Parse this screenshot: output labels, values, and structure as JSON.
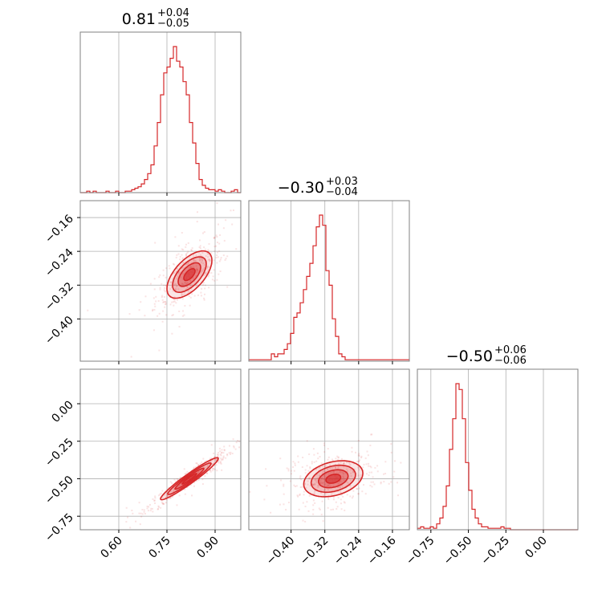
{
  "chart_data": {
    "type": "corner",
    "color": "#d62728",
    "grid": true,
    "parameters": [
      {
        "range": [
          0.48,
          0.98
        ],
        "ticks": [
          "0.60",
          "0.75",
          "0.90"
        ],
        "tick_values": [
          0.6,
          0.75,
          0.9
        ]
      },
      {
        "range": [
          -0.5,
          -0.12
        ],
        "ticks": [
          "−0.16",
          "−0.24",
          "−0.32",
          "−0.40"
        ],
        "tick_values": [
          -0.16,
          -0.24,
          -0.32,
          -0.4
        ],
        "x_ticks": [
          "−0.40",
          "−0.32",
          "−0.24",
          "−0.16"
        ],
        "x_tick_values": [
          -0.4,
          -0.32,
          -0.24,
          -0.16
        ]
      },
      {
        "range": [
          -0.84,
          0.23
        ],
        "ticks": [
          "0.00",
          "−0.25",
          "−0.50",
          "−0.75"
        ],
        "tick_values": [
          0.0,
          -0.25,
          -0.5,
          -0.75
        ],
        "x_ticks": [
          "−0.75",
          "−0.50",
          "−0.25",
          "0.00"
        ],
        "x_tick_values": [
          -0.75,
          -0.5,
          -0.25,
          0.0
        ]
      }
    ],
    "titles": [
      {
        "main": "0.81",
        "plus": "+0.04",
        "minus": "−0.05"
      },
      {
        "main": "−0.30",
        "plus": "+0.03",
        "minus": "−0.04"
      },
      {
        "main": "−0.50",
        "plus": "+0.06",
        "minus": "−0.06"
      }
    ],
    "histograms": [
      {
        "start": 0.48,
        "bin": 0.01,
        "counts": [
          0,
          0,
          1,
          0,
          1,
          0,
          0,
          0,
          1,
          0,
          0,
          1,
          0,
          0,
          1,
          1,
          2,
          3,
          4,
          6,
          9,
          13,
          19,
          32,
          48,
          67,
          82,
          86,
          92,
          100,
          90,
          86,
          76,
          67,
          48,
          34,
          20,
          9,
          5,
          3,
          2,
          2,
          1,
          2,
          1,
          0,
          0,
          1,
          2,
          0
        ]
      },
      {
        "start": -0.5,
        "bin": 0.0076,
        "counts": [
          1,
          1,
          1,
          1,
          1,
          1,
          1,
          5,
          3,
          5,
          5,
          8,
          12,
          19,
          30,
          33,
          40,
          49,
          58,
          67,
          79,
          92,
          100,
          93,
          62,
          52,
          29,
          17,
          5,
          3,
          1,
          1,
          1,
          1,
          1,
          1,
          1,
          1,
          1,
          1,
          1,
          1,
          1,
          1,
          1,
          1,
          1,
          1,
          1,
          1
        ]
      },
      {
        "start": -0.84,
        "bin": 0.0214,
        "counts": [
          1,
          2,
          1,
          1,
          2,
          1,
          4,
          8,
          16,
          30,
          55,
          76,
          100,
          96,
          76,
          46,
          27,
          14,
          8,
          4,
          2,
          2,
          1,
          1,
          1,
          1,
          2,
          1,
          1,
          0,
          0,
          0,
          0,
          0,
          0,
          0,
          0,
          0,
          0,
          0,
          0,
          0,
          0,
          0,
          0,
          0,
          0,
          0,
          0,
          0
        ]
      }
    ],
    "pairs": [
      {
        "x": 0,
        "y": 1,
        "center": [
          0.82,
          -0.295
        ],
        "spread": [
          0.035,
          0.028
        ],
        "corr": 0.6
      },
      {
        "x": 0,
        "y": 2,
        "center": [
          0.82,
          -0.5
        ],
        "spread": [
          0.045,
          0.07
        ],
        "corr": 0.96
      },
      {
        "x": 1,
        "y": 2,
        "center": [
          -0.3,
          -0.5
        ],
        "spread": [
          0.035,
          0.06
        ],
        "corr": 0.3
      }
    ]
  }
}
